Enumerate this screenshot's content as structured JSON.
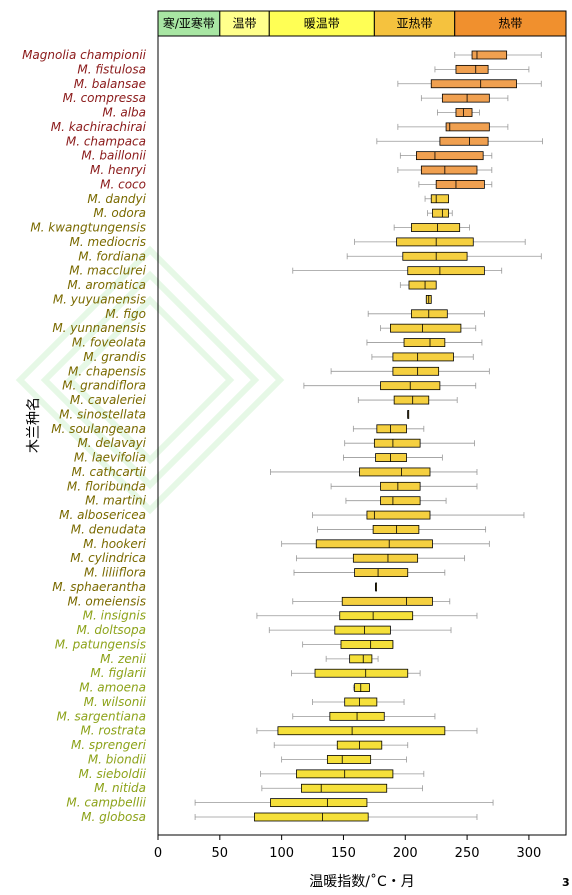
{
  "page_number": "3",
  "chart_data": {
    "type": "boxplot",
    "orientation": "horizontal",
    "xlabel": "温暖指数/˚C・月",
    "ylabel": "木兰种名",
    "xlim": [
      0,
      330
    ],
    "xticks": [
      0,
      50,
      100,
      150,
      200,
      250,
      300
    ],
    "grid": false,
    "zones": [
      {
        "label": "寒/亚寒带",
        "from": 0,
        "to": 50,
        "color": "#a8e6a3"
      },
      {
        "label": "温带",
        "from": 50,
        "to": 90,
        "color": "#ffff8c"
      },
      {
        "label": "暖温带",
        "from": 90,
        "to": 175,
        "color": "#ffff55"
      },
      {
        "label": "亚热带",
        "from": 175,
        "to": 240,
        "color": "#f5c23e"
      },
      {
        "label": "热带",
        "from": 240,
        "to": 330,
        "color": "#f0902e"
      }
    ],
    "label_colors": {
      "tropical": "#8b1a1a",
      "subtropical": "#7a6a00",
      "warm": "#8da31a"
    },
    "box_colors": {
      "tropical": "#f0a050",
      "subtropical": "#f5d040",
      "warm": "#f5e03a"
    },
    "species": [
      {
        "name": "Magnolia championii",
        "group": "tropical",
        "min": 240,
        "q1": 254,
        "median": 258,
        "q3": 282,
        "max": 310
      },
      {
        "name": "M. fistulosa",
        "group": "tropical",
        "min": 224,
        "q1": 241,
        "median": 257,
        "q3": 267,
        "max": 300
      },
      {
        "name": "M. balansae",
        "group": "tropical",
        "min": 194,
        "q1": 221,
        "median": 261,
        "q3": 290,
        "max": 310
      },
      {
        "name": "M. compressa",
        "group": "tropical",
        "min": 213,
        "q1": 230,
        "median": 250,
        "q3": 268,
        "max": 283
      },
      {
        "name": "M. alba",
        "group": "tropical",
        "min": 226,
        "q1": 241,
        "median": 247,
        "q3": 254,
        "max": 260
      },
      {
        "name": "M. kachirachirai",
        "group": "tropical",
        "min": 194,
        "q1": 233,
        "median": 236,
        "q3": 268,
        "max": 283
      },
      {
        "name": "M. champaca",
        "group": "tropical",
        "min": 177,
        "q1": 228,
        "median": 252,
        "q3": 267,
        "max": 311
      },
      {
        "name": "M. baillonii",
        "group": "tropical",
        "min": 196,
        "q1": 209,
        "median": 224,
        "q3": 263,
        "max": 270
      },
      {
        "name": "M. henryi",
        "group": "tropical",
        "min": 194,
        "q1": 213,
        "median": 232,
        "q3": 258,
        "max": 270
      },
      {
        "name": "M. coco",
        "group": "tropical",
        "min": 211,
        "q1": 225,
        "median": 241,
        "q3": 264,
        "max": 270
      },
      {
        "name": "M. dandyi",
        "group": "subtropical",
        "min": 216,
        "q1": 221,
        "median": 225,
        "q3": 235,
        "max": 235
      },
      {
        "name": "M. odora",
        "group": "subtropical",
        "min": 218,
        "q1": 222,
        "median": 230,
        "q3": 235,
        "max": 238
      },
      {
        "name": "M. kwangtungensis",
        "group": "subtropical",
        "min": 191,
        "q1": 205,
        "median": 226,
        "q3": 244,
        "max": 252
      },
      {
        "name": "M. mediocris",
        "group": "subtropical",
        "min": 159,
        "q1": 193,
        "median": 225,
        "q3": 255,
        "max": 297
      },
      {
        "name": "M. fordiana",
        "group": "subtropical",
        "min": 153,
        "q1": 198,
        "median": 225,
        "q3": 250,
        "max": 310
      },
      {
        "name": "M. macclurei",
        "group": "subtropical",
        "min": 109,
        "q1": 202,
        "median": 228,
        "q3": 264,
        "max": 278
      },
      {
        "name": "M. aromatica",
        "group": "subtropical",
        "min": 196,
        "q1": 203,
        "median": 216,
        "q3": 225,
        "max": 225
      },
      {
        "name": "M. yuyuanensis",
        "group": "subtropical",
        "min": 217,
        "q1": 217,
        "median": 219,
        "q3": 221,
        "max": 221
      },
      {
        "name": "M. figo",
        "group": "subtropical",
        "min": 170,
        "q1": 205,
        "median": 219,
        "q3": 234,
        "max": 264
      },
      {
        "name": "M. yunnanensis",
        "group": "subtropical",
        "min": 180,
        "q1": 188,
        "median": 214,
        "q3": 245,
        "max": 257
      },
      {
        "name": "M. foveolata",
        "group": "subtropical",
        "min": 169,
        "q1": 199,
        "median": 220,
        "q3": 232,
        "max": 262
      },
      {
        "name": "M. grandis",
        "group": "subtropical",
        "min": 173,
        "q1": 190,
        "median": 210,
        "q3": 239,
        "max": 255
      },
      {
        "name": "M. chapensis",
        "group": "subtropical",
        "min": 140,
        "q1": 190,
        "median": 210,
        "q3": 227,
        "max": 268
      },
      {
        "name": "M. grandiflora",
        "group": "subtropical",
        "min": 118,
        "q1": 180,
        "median": 204,
        "q3": 228,
        "max": 257
      },
      {
        "name": "M. cavaleriei",
        "group": "subtropical",
        "min": 162,
        "q1": 191,
        "median": 206,
        "q3": 219,
        "max": 242
      },
      {
        "name": "M. sinostellata",
        "group": "subtropical",
        "min": 202,
        "q1": 202,
        "median": 202,
        "q3": 202,
        "max": 202
      },
      {
        "name": "M. soulangeana",
        "group": "subtropical",
        "min": 158,
        "q1": 177,
        "median": 188,
        "q3": 201,
        "max": 215
      },
      {
        "name": "M. delavayi",
        "group": "subtropical",
        "min": 151,
        "q1": 175,
        "median": 190,
        "q3": 212,
        "max": 256
      },
      {
        "name": "M. laevifolia",
        "group": "subtropical",
        "min": 150,
        "q1": 176,
        "median": 188,
        "q3": 201,
        "max": 230
      },
      {
        "name": "M. cathcartii",
        "group": "subtropical",
        "min": 91,
        "q1": 163,
        "median": 197,
        "q3": 220,
        "max": 258
      },
      {
        "name": "M. floribunda",
        "group": "subtropical",
        "min": 140,
        "q1": 180,
        "median": 194,
        "q3": 212,
        "max": 258
      },
      {
        "name": "M. martini",
        "group": "subtropical",
        "min": 152,
        "q1": 180,
        "median": 190,
        "q3": 212,
        "max": 233
      },
      {
        "name": "M. alboser­icea",
        "group": "subtropical",
        "min": 125,
        "q1": 169,
        "median": 175,
        "q3": 220,
        "max": 296
      },
      {
        "name": "M. denudata",
        "group": "subtropical",
        "min": 129,
        "q1": 174,
        "median": 193,
        "q3": 211,
        "max": 265
      },
      {
        "name": "M. hookeri",
        "group": "subtropical",
        "min": 100,
        "q1": 128,
        "median": 187,
        "q3": 222,
        "max": 268
      },
      {
        "name": "M. cylindrica",
        "group": "subtropical",
        "min": 112,
        "q1": 158,
        "median": 186,
        "q3": 210,
        "max": 248
      },
      {
        "name": "M. liliiflora",
        "group": "subtropical",
        "min": 110,
        "q1": 159,
        "median": 178,
        "q3": 202,
        "max": 232
      },
      {
        "name": "M. sphaerantha",
        "group": "subtropical",
        "min": 176,
        "q1": 176,
        "median": 176,
        "q3": 176,
        "max": 176
      },
      {
        "name": "M. omeiensis",
        "group": "subtropical",
        "min": 109,
        "q1": 149,
        "median": 201,
        "q3": 222,
        "max": 236
      },
      {
        "name": "M. insignis",
        "group": "warm",
        "min": 80,
        "q1": 147,
        "median": 174,
        "q3": 206,
        "max": 258
      },
      {
        "name": "M. doltsopa",
        "group": "warm",
        "min": 90,
        "q1": 143,
        "median": 167,
        "q3": 188,
        "max": 237
      },
      {
        "name": "M. patungensis",
        "group": "warm",
        "min": 117,
        "q1": 148,
        "median": 172,
        "q3": 190,
        "max": 190
      },
      {
        "name": "M. zenii",
        "group": "warm",
        "min": 136,
        "q1": 155,
        "median": 166,
        "q3": 173,
        "max": 178
      },
      {
        "name": "M. figlarii",
        "group": "warm",
        "min": 108,
        "q1": 127,
        "median": 168,
        "q3": 202,
        "max": 212
      },
      {
        "name": "M. amoena",
        "group": "warm",
        "min": 158,
        "q1": 159,
        "median": 164,
        "q3": 171,
        "max": 171
      },
      {
        "name": "M. wilsonii",
        "group": "warm",
        "min": 125,
        "q1": 151,
        "median": 163,
        "q3": 177,
        "max": 199
      },
      {
        "name": "M. sargentiana",
        "group": "warm",
        "min": 109,
        "q1": 139,
        "median": 161,
        "q3": 183,
        "max": 224
      },
      {
        "name": "M. rostrata",
        "group": "warm",
        "min": 80,
        "q1": 97,
        "median": 157,
        "q3": 232,
        "max": 258
      },
      {
        "name": "M. sprengeri",
        "group": "warm",
        "min": 94,
        "q1": 145,
        "median": 163,
        "q3": 181,
        "max": 202
      },
      {
        "name": "M. biondii",
        "group": "warm",
        "min": 100,
        "q1": 137,
        "median": 149,
        "q3": 172,
        "max": 201
      },
      {
        "name": "M. sieboldii",
        "group": "warm",
        "min": 83,
        "q1": 112,
        "median": 151,
        "q3": 190,
        "max": 215
      },
      {
        "name": "M. nitida",
        "group": "warm",
        "min": 84,
        "q1": 116,
        "median": 132,
        "q3": 185,
        "max": 214
      },
      {
        "name": "M. campbellii",
        "group": "warm",
        "min": 30,
        "q1": 91,
        "median": 137,
        "q3": 169,
        "max": 271
      },
      {
        "name": "M. globosa",
        "group": "warm",
        "min": 30,
        "q1": 78,
        "median": 133,
        "q3": 170,
        "max": 258
      }
    ]
  }
}
